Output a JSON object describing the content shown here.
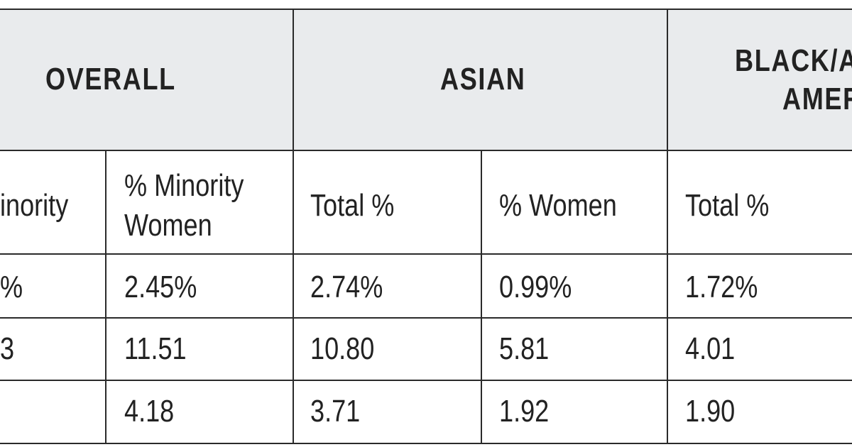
{
  "header": {
    "groups": [
      {
        "lines": [
          "OVERALL"
        ]
      },
      {
        "lines": [
          "ASIAN"
        ]
      },
      {
        "lines": [
          "BLACK/A",
          "AMER"
        ]
      }
    ]
  },
  "table": {
    "columns": [
      [
        "inority"
      ],
      [
        "% Minority",
        "Women"
      ],
      [
        "Total %"
      ],
      [
        "% Women"
      ],
      [
        "Total %"
      ]
    ],
    "rows": [
      [
        "%",
        "2.45%",
        "2.74%",
        "0.99%",
        "1.72%"
      ],
      [
        "3",
        "11.51",
        "10.80",
        "5.81",
        "4.01"
      ],
      [
        null,
        "4.18",
        "3.71",
        "1.92",
        "1.90"
      ]
    ]
  }
}
